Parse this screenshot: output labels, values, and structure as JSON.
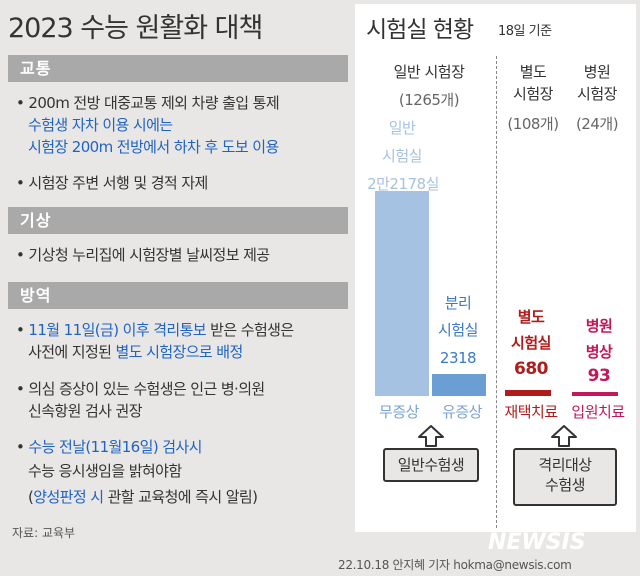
{
  "title": "2023 수능 원활화 대책",
  "sections": {
    "traffic": {
      "label": "교통",
      "bullet1": "• 200m 전방 대중교통 제외 차량 출입 통제",
      "bullet1_blue1": "수험생 자차 이용 시에는",
      "bullet1_blue2": "시험장 200m 전방에서 하차 후 도보 이용",
      "bullet2": "• 시험장 주변 서행 및 경적 자제"
    },
    "weather": {
      "label": "기상",
      "bullet1": "• 기상청 누리집에 시험장별 날씨정보 제공"
    },
    "quarantine": {
      "label": "방역",
      "b1_bullet": "• ",
      "b1_blue": "11월 11일(금) 이후 격리통보",
      "b1_rest": " 받은 수험생은",
      "b1_line2_a": "사전에 지정된 ",
      "b1_line2_blue": "별도 시험장으로 배정",
      "b2_line1": "• 의심 증상이 있는 수험생은 인근 병·의원",
      "b2_line2": "신속항원 검사 권장",
      "b3_bullet": "• ",
      "b3_blue": "수능 전날(11월16일) 검사시",
      "b3_line2": "수능 응시생임을 밝혀야함",
      "b3_line3_a": "(",
      "b3_line3_blue": "양성판정 시",
      "b3_line3_b": " 관할 교육청에 즉시 알림)"
    }
  },
  "panel": {
    "title": "시험실 현황",
    "subtitle": "18일 기준",
    "general": {
      "label": "일반 시험장",
      "count": "(1265개)",
      "bar1_label_1": "일반",
      "bar1_label_2": "시험실",
      "bar1_label_3": "2만2178실",
      "bar2_label_1": "분리",
      "bar2_label_2": "시험실",
      "bar2_label_3": "2318",
      "x1": "무증상",
      "x2": "유증상",
      "box": "일반수험생"
    },
    "separate": {
      "label_1": "별도",
      "label_2": "시험장",
      "count": "(108개)",
      "bar_label_1": "별도",
      "bar_label_2": "시험실",
      "bar_label_3": "680",
      "x": "재택치료"
    },
    "hospital": {
      "label_1": "병원",
      "label_2": "시험장",
      "count": "(24개)",
      "bar_label_1": "병원",
      "bar_label_2": "병상",
      "bar_label_3": "93",
      "x": "입원치료"
    },
    "isolated_box_1": "격리대상",
    "isolated_box_2": "수험생"
  },
  "chart_data": {
    "type": "bar",
    "categories": [
      "일반 시험실",
      "분리 시험실",
      "별도 시험실",
      "병원 병상"
    ],
    "values": [
      22178,
      2318,
      680,
      93
    ],
    "colors": [
      "#a6c2e2",
      "#6b9fd3",
      "#b01c1c",
      "#c2185b"
    ]
  },
  "source": "자료: 교육부",
  "watermark": "NEWSIS",
  "credit": "22.10.18 안지혜 기자  hokma@newsis.com"
}
